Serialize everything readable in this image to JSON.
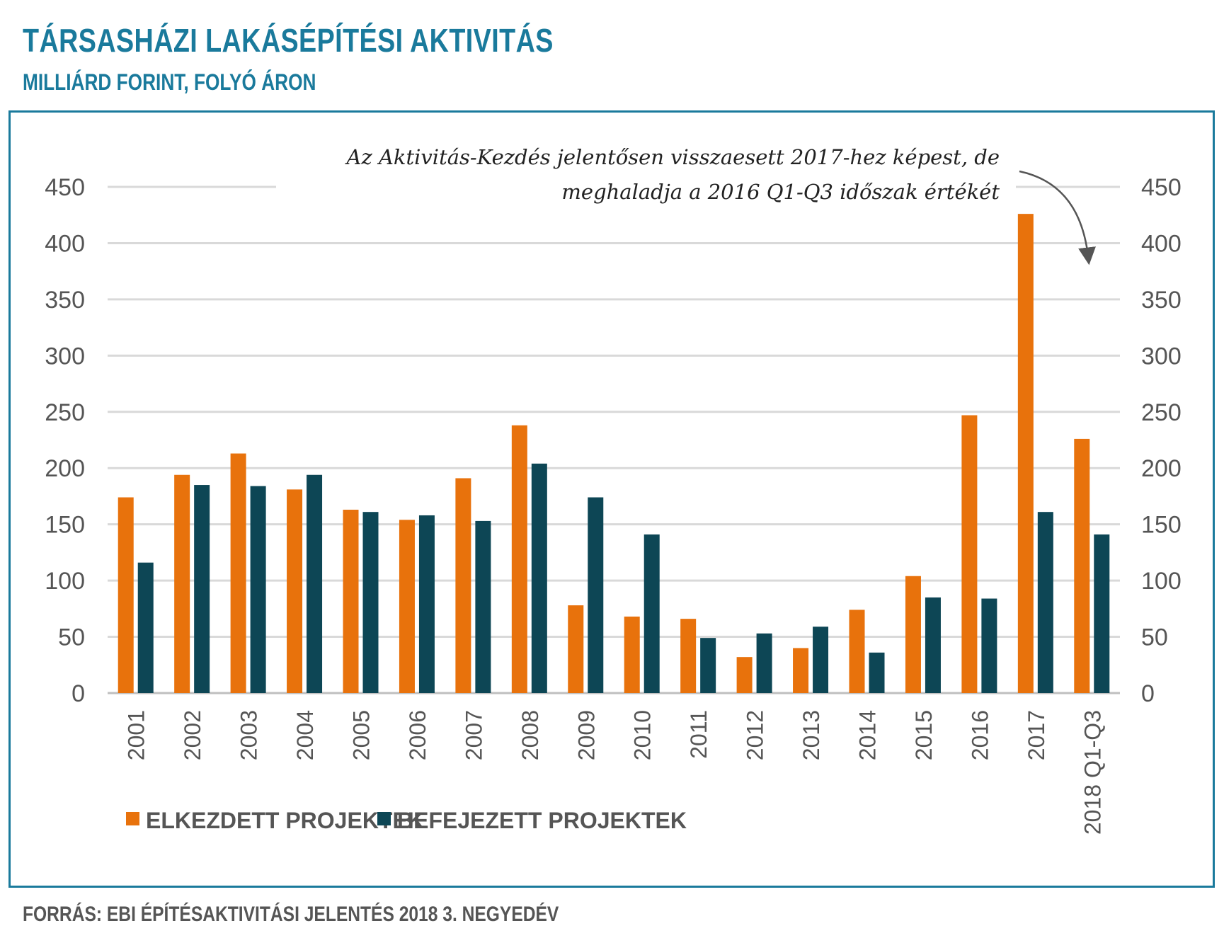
{
  "header": {
    "title": "TÁRSASHÁZI LAKÁSÉPÍTÉSI AKTIVITÁS",
    "subtitle": "MILLIÁRD FORINT, FOLYÓ ÁRON"
  },
  "footer": {
    "source": "FORRÁS: EBI ÉPÍTÉSAKTIVITÁSI JELENTÉS 2018 3. NEGYEDÉV"
  },
  "colors": {
    "accent": "#1a7a9c",
    "started": "#e8720c",
    "completed": "#0d4655",
    "grid": "#d9d9d9"
  },
  "chart_data": {
    "type": "bar",
    "title": "TÁRSASHÁZI LAKÁSÉPÍTÉSI AKTIVITÁS",
    "subtitle": "MILLIÁRD FORINT, FOLYÓ ÁRON",
    "categories": [
      "2001",
      "2002",
      "2003",
      "2004",
      "2005",
      "2006",
      "2007",
      "2008",
      "2009",
      "2010",
      "2011",
      "2012",
      "2013",
      "2014",
      "2015",
      "2016",
      "2017",
      "2018 Q1-Q3"
    ],
    "series": [
      {
        "name": "ELKEZDETT PROJEKTEK",
        "color": "#e8720c",
        "values": [
          174,
          194,
          213,
          181,
          163,
          154,
          191,
          238,
          78,
          68,
          66,
          32,
          40,
          74,
          104,
          247,
          426,
          226
        ]
      },
      {
        "name": "BEFEJEZETT PROJEKTEK",
        "color": "#0d4655",
        "values": [
          116,
          185,
          184,
          194,
          161,
          158,
          153,
          204,
          174,
          141,
          49,
          53,
          59,
          36,
          85,
          84,
          161,
          141
        ]
      }
    ],
    "ylim": [
      0,
      450
    ],
    "yticks": [
      0,
      50,
      100,
      150,
      200,
      250,
      300,
      350,
      400,
      450
    ],
    "ytick_labels": [
      "0",
      "50",
      "100",
      "150",
      "200",
      "250",
      "300",
      "350",
      "400",
      "450"
    ],
    "secondary_y": true,
    "grid": true,
    "legend_position": "bottom-left",
    "xlabel": "",
    "ylabel": "",
    "annotation": {
      "line1": "Az Aktivitás-Kezdés jelentősen visszaesett 2017-hez képest, de",
      "line2": "meghaladja a 2016 Q1-Q3 időszak értékét",
      "target_category": "2018 Q1-Q3"
    }
  }
}
